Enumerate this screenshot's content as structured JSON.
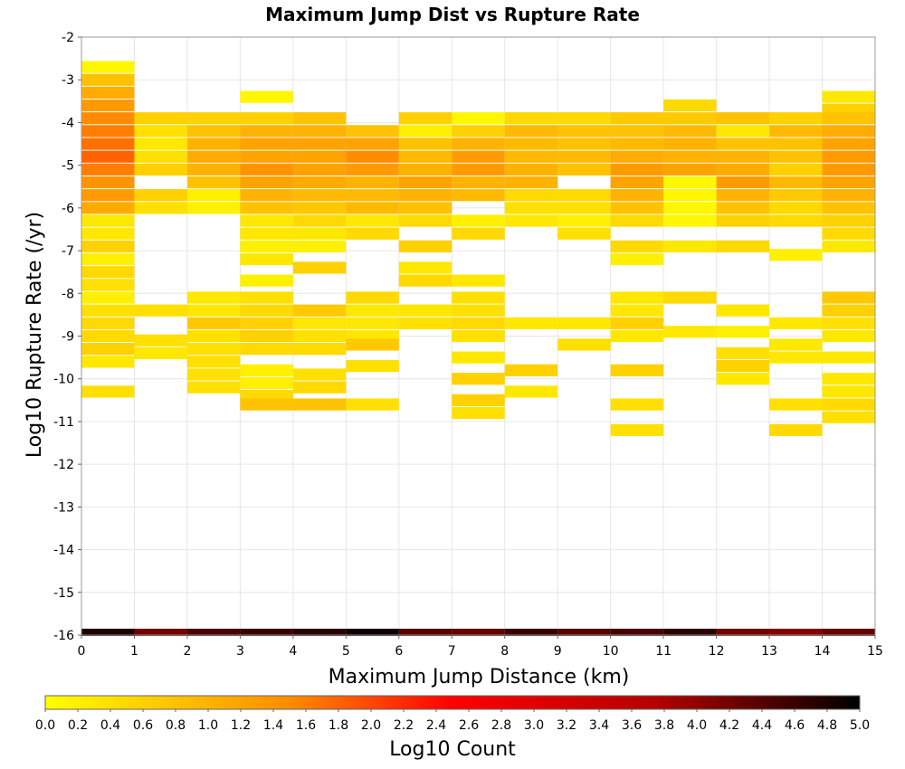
{
  "chart_data": {
    "type": "heatmap",
    "title": "Maximum Jump Dist vs Rupture Rate",
    "xlabel": "Maximum Jump Distance (km)",
    "ylabel": "Log10 Rupture Rate (/yr)",
    "colorbar_label": "Log10 Count",
    "xlim": [
      0,
      15
    ],
    "ylim": [
      -16,
      -2
    ],
    "x_ticks": [
      "0",
      "1",
      "2",
      "3",
      "4",
      "5",
      "6",
      "7",
      "8",
      "9",
      "10",
      "11",
      "12",
      "13",
      "14",
      "15"
    ],
    "y_ticks": [
      "-2",
      "-3",
      "-4",
      "-5",
      "-6",
      "-7",
      "-8",
      "-9",
      "-10",
      "-11",
      "-12",
      "-13",
      "-14",
      "-15",
      "-16"
    ],
    "colorbar_range": [
      0.0,
      5.0
    ],
    "colorbar_ticks": [
      "0.0",
      "0.2",
      "0.4",
      "0.6",
      "0.8",
      "1.0",
      "1.2",
      "1.4",
      "1.6",
      "1.8",
      "2.0",
      "2.2",
      "2.4",
      "2.6",
      "2.8",
      "3.0",
      "3.2",
      "3.4",
      "3.6",
      "3.8",
      "4.0",
      "4.2",
      "4.4",
      "4.6",
      "4.8",
      "5.0"
    ],
    "bin_width_x": 1,
    "bin_height_y": 0.28,
    "colormap": [
      "#ffff00",
      "#ff8c00",
      "#ff0000",
      "#b40000",
      "#000000"
    ],
    "grid": true,
    "columns": [
      {
        "x": 0,
        "cells": [
          [
            -2.7,
            0.1
          ],
          [
            -3.0,
            0.8
          ],
          [
            -3.3,
            1.1
          ],
          [
            -3.6,
            1.3
          ],
          [
            -3.9,
            1.5
          ],
          [
            -4.2,
            1.6
          ],
          [
            -4.5,
            1.7
          ],
          [
            -4.8,
            1.8
          ],
          [
            -5.1,
            1.6
          ],
          [
            -5.4,
            1.4
          ],
          [
            -5.7,
            1.3
          ],
          [
            -6.0,
            1.1
          ],
          [
            -6.3,
            0.3
          ],
          [
            -6.6,
            0.3
          ],
          [
            -6.9,
            0.6
          ],
          [
            -7.2,
            0.2
          ],
          [
            -7.5,
            0.5
          ],
          [
            -7.8,
            0.4
          ],
          [
            -8.1,
            0.2
          ],
          [
            -8.4,
            0.4
          ],
          [
            -8.7,
            0.5
          ],
          [
            -9.0,
            0.5
          ],
          [
            -9.3,
            0.6
          ],
          [
            -9.6,
            0.3
          ],
          [
            -10.3,
            0.4
          ]
        ]
      },
      {
        "x": 1,
        "cells": [
          [
            -3.9,
            0.6
          ],
          [
            -4.2,
            0.4
          ],
          [
            -4.5,
            0.3
          ],
          [
            -4.8,
            0.4
          ],
          [
            -5.1,
            0.6
          ],
          [
            -5.7,
            0.6
          ],
          [
            -6.0,
            0.4
          ],
          [
            -8.4,
            0.4
          ],
          [
            -9.1,
            0.4
          ],
          [
            -9.4,
            0.3
          ]
        ]
      },
      {
        "x": 2,
        "cells": [
          [
            -3.9,
            0.6
          ],
          [
            -4.2,
            0.8
          ],
          [
            -4.5,
            1.0
          ],
          [
            -4.8,
            1.1
          ],
          [
            -5.1,
            1.0
          ],
          [
            -5.4,
            0.8
          ],
          [
            -5.7,
            0.2
          ],
          [
            -6.0,
            0.2
          ],
          [
            -8.1,
            0.3
          ],
          [
            -8.4,
            0.3
          ],
          [
            -8.7,
            0.7
          ],
          [
            -9.0,
            0.4
          ],
          [
            -9.3,
            0.4
          ],
          [
            -9.6,
            0.4
          ],
          [
            -9.9,
            0.4
          ],
          [
            -10.2,
            0.4
          ]
        ]
      },
      {
        "x": 3,
        "cells": [
          [
            -3.4,
            0.1
          ],
          [
            -3.9,
            0.6
          ],
          [
            -4.2,
            1.0
          ],
          [
            -4.5,
            1.2
          ],
          [
            -4.8,
            1.2
          ],
          [
            -5.1,
            1.4
          ],
          [
            -5.4,
            1.2
          ],
          [
            -5.7,
            1.0
          ],
          [
            -6.0,
            0.8
          ],
          [
            -6.3,
            0.3
          ],
          [
            -6.6,
            0.3
          ],
          [
            -6.9,
            0.2
          ],
          [
            -7.2,
            0.3
          ],
          [
            -7.7,
            0.2
          ],
          [
            -8.1,
            0.4
          ],
          [
            -8.4,
            0.5
          ],
          [
            -8.7,
            0.6
          ],
          [
            -9.0,
            0.6
          ],
          [
            -9.3,
            0.5
          ],
          [
            -9.8,
            0.2
          ],
          [
            -10.1,
            0.2
          ],
          [
            -10.4,
            0.5
          ],
          [
            -10.6,
            0.8
          ]
        ]
      },
      {
        "x": 4,
        "cells": [
          [
            -3.9,
            0.8
          ],
          [
            -4.2,
            1.0
          ],
          [
            -4.5,
            1.2
          ],
          [
            -4.8,
            1.2
          ],
          [
            -5.1,
            1.2
          ],
          [
            -5.4,
            1.1
          ],
          [
            -5.7,
            0.9
          ],
          [
            -6.0,
            0.7
          ],
          [
            -6.3,
            0.5
          ],
          [
            -6.6,
            0.3
          ],
          [
            -6.9,
            0.2
          ],
          [
            -7.4,
            0.6
          ],
          [
            -8.4,
            0.7
          ],
          [
            -8.7,
            0.3
          ],
          [
            -9.0,
            0.4
          ],
          [
            -9.3,
            0.5
          ],
          [
            -9.9,
            0.4
          ],
          [
            -10.2,
            0.5
          ],
          [
            -10.6,
            0.8
          ]
        ]
      },
      {
        "x": 5,
        "cells": [
          [
            -4.2,
            0.8
          ],
          [
            -4.5,
            1.2
          ],
          [
            -4.8,
            1.5
          ],
          [
            -5.1,
            1.3
          ],
          [
            -5.4,
            1.0
          ],
          [
            -5.7,
            0.9
          ],
          [
            -6.0,
            0.9
          ],
          [
            -6.3,
            0.3
          ],
          [
            -6.6,
            0.5
          ],
          [
            -8.1,
            0.5
          ],
          [
            -8.4,
            0.3
          ],
          [
            -8.7,
            0.3
          ],
          [
            -9.0,
            0.3
          ],
          [
            -9.2,
            0.7
          ],
          [
            -9.7,
            0.4
          ],
          [
            -10.6,
            0.4
          ]
        ]
      },
      {
        "x": 6,
        "cells": [
          [
            -3.9,
            0.6
          ],
          [
            -4.2,
            0.2
          ],
          [
            -4.5,
            0.8
          ],
          [
            -4.8,
            0.9
          ],
          [
            -5.1,
            1.0
          ],
          [
            -5.4,
            1.2
          ],
          [
            -5.7,
            1.0
          ],
          [
            -6.0,
            0.8
          ],
          [
            -6.3,
            0.5
          ],
          [
            -6.9,
            0.6
          ],
          [
            -7.4,
            0.3
          ],
          [
            -7.7,
            0.5
          ],
          [
            -8.4,
            0.3
          ],
          [
            -8.7,
            0.4
          ]
        ]
      },
      {
        "x": 7,
        "cells": [
          [
            -3.9,
            0.1
          ],
          [
            -4.2,
            0.6
          ],
          [
            -4.5,
            1.0
          ],
          [
            -4.8,
            1.3
          ],
          [
            -5.1,
            1.3
          ],
          [
            -5.4,
            1.0
          ],
          [
            -5.7,
            0.9
          ],
          [
            -6.3,
            0.2
          ],
          [
            -6.6,
            0.5
          ],
          [
            -7.7,
            0.3
          ],
          [
            -8.1,
            0.4
          ],
          [
            -8.4,
            0.4
          ],
          [
            -8.7,
            0.5
          ],
          [
            -9.0,
            0.4
          ],
          [
            -9.5,
            0.3
          ],
          [
            -10.0,
            0.6
          ],
          [
            -10.5,
            0.6
          ],
          [
            -10.8,
            0.4
          ]
        ]
      },
      {
        "x": 8,
        "cells": [
          [
            -3.9,
            0.5
          ],
          [
            -4.2,
            0.9
          ],
          [
            -4.5,
            0.9
          ],
          [
            -4.8,
            0.9
          ],
          [
            -5.1,
            1.0
          ],
          [
            -5.4,
            1.0
          ],
          [
            -5.7,
            0.5
          ],
          [
            -6.0,
            0.4
          ],
          [
            -6.3,
            0.3
          ],
          [
            -8.7,
            0.3
          ],
          [
            -9.8,
            0.6
          ],
          [
            -10.3,
            0.3
          ]
        ]
      },
      {
        "x": 9,
        "cells": [
          [
            -3.9,
            0.5
          ],
          [
            -4.2,
            0.8
          ],
          [
            -4.5,
            0.8
          ],
          [
            -4.8,
            0.9
          ],
          [
            -5.1,
            0.8
          ],
          [
            -5.7,
            0.5
          ],
          [
            -6.0,
            0.4
          ],
          [
            -6.3,
            0.2
          ],
          [
            -6.6,
            0.4
          ],
          [
            -8.7,
            0.3
          ],
          [
            -9.2,
            0.4
          ]
        ]
      },
      {
        "x": 10,
        "cells": [
          [
            -3.9,
            0.7
          ],
          [
            -4.2,
            0.8
          ],
          [
            -4.5,
            0.9
          ],
          [
            -4.8,
            1.1
          ],
          [
            -5.1,
            1.3
          ],
          [
            -5.4,
            1.2
          ],
          [
            -5.7,
            1.0
          ],
          [
            -6.0,
            0.8
          ],
          [
            -6.3,
            0.5
          ],
          [
            -6.9,
            0.5
          ],
          [
            -7.2,
            0.2
          ],
          [
            -8.1,
            0.3
          ],
          [
            -8.4,
            0.3
          ],
          [
            -8.7,
            0.6
          ],
          [
            -9.0,
            0.3
          ],
          [
            -9.8,
            0.6
          ],
          [
            -10.6,
            0.4
          ],
          [
            -11.2,
            0.4
          ]
        ]
      },
      {
        "x": 11,
        "cells": [
          [
            -3.6,
            0.5
          ],
          [
            -3.9,
            0.7
          ],
          [
            -4.2,
            0.9
          ],
          [
            -4.5,
            1.0
          ],
          [
            -4.8,
            1.0
          ],
          [
            -5.1,
            1.2
          ],
          [
            -5.4,
            0.1
          ],
          [
            -5.7,
            0.1
          ],
          [
            -6.0,
            0.1
          ],
          [
            -6.3,
            0.1
          ],
          [
            -6.9,
            0.3
          ],
          [
            -8.1,
            0.5
          ],
          [
            -8.9,
            0.3
          ]
        ]
      },
      {
        "x": 12,
        "cells": [
          [
            -3.9,
            0.8
          ],
          [
            -4.2,
            0.3
          ],
          [
            -4.5,
            0.8
          ],
          [
            -4.8,
            1.0
          ],
          [
            -5.1,
            1.1
          ],
          [
            -5.4,
            1.3
          ],
          [
            -5.7,
            1.0
          ],
          [
            -6.0,
            0.8
          ],
          [
            -6.3,
            0.6
          ],
          [
            -6.9,
            0.5
          ],
          [
            -8.4,
            0.3
          ],
          [
            -8.9,
            0.2
          ],
          [
            -9.4,
            0.4
          ],
          [
            -9.7,
            0.6
          ],
          [
            -10.0,
            0.3
          ]
        ]
      },
      {
        "x": 13,
        "cells": [
          [
            -3.9,
            0.6
          ],
          [
            -4.2,
            0.9
          ],
          [
            -4.5,
            0.8
          ],
          [
            -4.8,
            0.8
          ],
          [
            -5.1,
            0.6
          ],
          [
            -5.4,
            0.9
          ],
          [
            -5.7,
            0.7
          ],
          [
            -6.0,
            0.5
          ],
          [
            -6.3,
            0.5
          ],
          [
            -7.1,
            0.2
          ],
          [
            -8.7,
            0.3
          ],
          [
            -9.2,
            0.3
          ],
          [
            -9.5,
            0.3
          ],
          [
            -10.6,
            0.4
          ],
          [
            -11.2,
            0.5
          ]
        ]
      },
      {
        "x": 14,
        "cells": [
          [
            -3.4,
            0.3
          ],
          [
            -3.7,
            0.6
          ],
          [
            -3.9,
            0.8
          ],
          [
            -4.2,
            1.1
          ],
          [
            -4.5,
            1.2
          ],
          [
            -4.8,
            1.3
          ],
          [
            -5.1,
            1.3
          ],
          [
            -5.4,
            1.2
          ],
          [
            -5.7,
            1.0
          ],
          [
            -6.0,
            0.8
          ],
          [
            -6.3,
            0.6
          ],
          [
            -6.6,
            0.5
          ],
          [
            -6.9,
            0.3
          ],
          [
            -8.1,
            0.7
          ],
          [
            -8.4,
            0.6
          ],
          [
            -8.7,
            0.4
          ],
          [
            -9.0,
            0.3
          ],
          [
            -9.5,
            0.3
          ],
          [
            -10.0,
            0.3
          ],
          [
            -10.3,
            0.3
          ],
          [
            -10.6,
            0.5
          ],
          [
            -10.9,
            0.4
          ]
        ]
      }
    ],
    "bottom_row": {
      "y": -16,
      "values": [
        4.8,
        4.2,
        4.5,
        4.6,
        4.7,
        4.9,
        4.4,
        4.3,
        4.6,
        4.4,
        4.5,
        4.7,
        4.2,
        4.1,
        4.3
      ]
    }
  }
}
